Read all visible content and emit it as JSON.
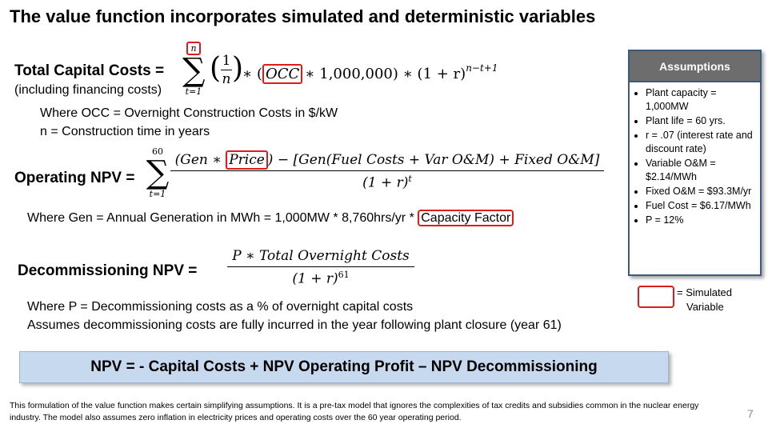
{
  "title": "The value function incorporates simulated and deterministic variables",
  "capital": {
    "label": "Total Capital Costs =",
    "sublabel": "(including financing costs)",
    "sum_upper": "n",
    "sum_lower": "t=1",
    "paren_open": "(",
    "frac_num": "1",
    "frac_den": "n",
    "paren_close": ")",
    "mult": "∗ (",
    "occ": "OCC",
    "tail": "∗  1,000,000) ∗ (1 + r)",
    "exp": "n−t+1",
    "note1": "Where OCC = Overnight Construction Costs in $/kW",
    "note2": "n = Construction time in years"
  },
  "operating": {
    "label": "Operating NPV =",
    "sum_upper": "60",
    "sum_lower": "t=1",
    "num_a": "(Gen ∗",
    "price": "Price",
    "num_b": ") − [Gen(Fuel Costs + Var O&M) +  Fixed O&M]",
    "den": "(1 + r)",
    "den_exp": "t",
    "note_a": "Where Gen = Annual Generation in MWh = 1,000MW * 8,760hrs/yr *",
    "note_cf": "Capacity Factor"
  },
  "decom": {
    "label": "Decommissioning NPV =",
    "num": "P ∗ Total Overnight Costs",
    "den": "(1 + r)",
    "den_exp": "61",
    "note1": "Where P = Decommissioning costs as a % of overnight capital costs",
    "note2": "Assumes decommissioning costs are fully incurred in the year following plant closure (year 61)"
  },
  "assumptions": {
    "header": "Assumptions",
    "items": [
      "Plant capacity = 1,000MW",
      "Plant life = 60 yrs.",
      "r = .07 (interest rate and discount rate)",
      "Variable O&M = $2.14/MWh",
      "Fixed O&M = $93.3M/yr",
      "Fuel Cost = $6.17/MWh",
      "P = 12%"
    ]
  },
  "legend": {
    "label_line1": "= Simulated",
    "label_line2": "Variable",
    "highlight_color": "#e01b1b"
  },
  "npv_formula": "NPV = - Capital Costs + NPV Operating Profit – NPV Decommissioning",
  "footnote": "This formulation of the value function makes certain simplifying assumptions.  It is a pre-tax model that ignores the complexities of tax credits and subsidies common in the nuclear energy industry. The model also assumes zero inflation in electricity prices and operating costs over the 60 year operating period.",
  "page_number": "7"
}
